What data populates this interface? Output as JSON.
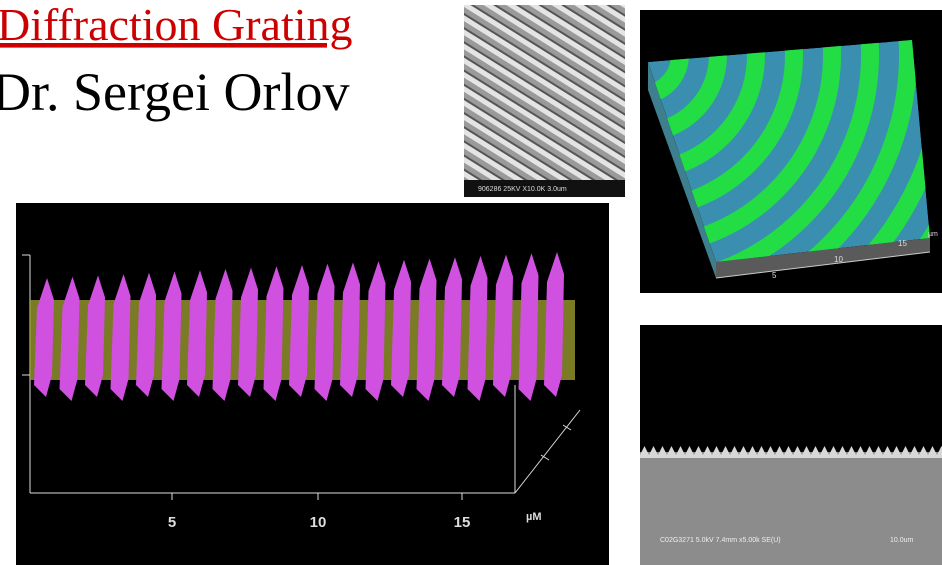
{
  "slide": {
    "title": "Diffraction Grating",
    "author": "Dr. Sergei Orlov"
  },
  "images": {
    "sem_top": {
      "caption": "906286 25KV X10.0K 3.0um"
    },
    "profile_3d": {
      "ticks": [
        "5",
        "10",
        "15"
      ],
      "unit": "µM"
    },
    "surface_3d": {
      "ticks": [
        "5",
        "10",
        "15"
      ],
      "unit": "µm"
    },
    "sem_cross_section": {
      "caption": "C02G3271 5.0kV 7.4mm x5.00k SE(U)",
      "scale": "10.0um"
    }
  }
}
